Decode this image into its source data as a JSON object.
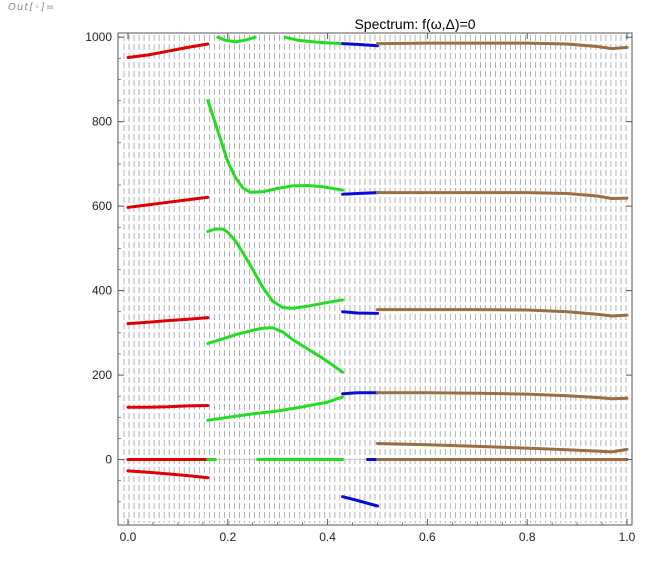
{
  "cell_label": "Out[◦]=",
  "chart_data": {
    "type": "line",
    "title": "Spectrum: f(ω,Δ)=0",
    "xlabel": "",
    "ylabel": "",
    "xlim": [
      -0.02,
      1.01
    ],
    "ylim": [
      -155,
      1010
    ],
    "xticks": [
      0.0,
      0.2,
      0.4,
      0.6,
      0.8,
      1.0
    ],
    "xtick_labels": [
      "0.0",
      "0.2",
      "0.4",
      "0.6",
      "0.8",
      "1.0"
    ],
    "yticks": [
      0,
      200,
      400,
      600,
      800,
      1000
    ],
    "ytick_labels": [
      "0",
      "200",
      "400",
      "600",
      "800",
      "1000"
    ],
    "vertical_dashed_grid": true,
    "colors": {
      "red": "#e00000",
      "green": "#22dd22",
      "blue": "#0a0ad8",
      "brown": "#9a6e42",
      "grid": "#a0a0a0",
      "axis": "#555555"
    },
    "segments": [
      {
        "color": "red",
        "points": [
          [
            0.0,
            952
          ],
          [
            0.04,
            958
          ],
          [
            0.08,
            967
          ],
          [
            0.12,
            976
          ],
          [
            0.16,
            984
          ]
        ]
      },
      {
        "color": "red",
        "points": [
          [
            0.0,
            597
          ],
          [
            0.04,
            603
          ],
          [
            0.08,
            609
          ],
          [
            0.12,
            615
          ],
          [
            0.16,
            621
          ]
        ]
      },
      {
        "color": "red",
        "points": [
          [
            0.0,
            322
          ],
          [
            0.04,
            325
          ],
          [
            0.08,
            329
          ],
          [
            0.12,
            332
          ],
          [
            0.16,
            336
          ]
        ]
      },
      {
        "color": "red",
        "points": [
          [
            0.0,
            124
          ],
          [
            0.04,
            124
          ],
          [
            0.08,
            125
          ],
          [
            0.12,
            127
          ],
          [
            0.16,
            128
          ]
        ]
      },
      {
        "color": "red",
        "points": [
          [
            0.0,
            0
          ],
          [
            0.16,
            0
          ]
        ]
      },
      {
        "color": "red",
        "points": [
          [
            0.0,
            -27
          ],
          [
            0.04,
            -30
          ],
          [
            0.08,
            -34
          ],
          [
            0.12,
            -38
          ],
          [
            0.16,
            -43
          ]
        ]
      },
      {
        "color": "green",
        "points": [
          [
            0.18,
            1000
          ],
          [
            0.195,
            993
          ],
          [
            0.215,
            989
          ],
          [
            0.235,
            993
          ],
          [
            0.255,
            1000
          ]
        ]
      },
      {
        "color": "green",
        "points": [
          [
            0.315,
            1000
          ],
          [
            0.34,
            993
          ],
          [
            0.38,
            988
          ],
          [
            0.43,
            985
          ]
        ]
      },
      {
        "color": "green",
        "points": [
          [
            0.16,
            850
          ],
          [
            0.17,
            815
          ],
          [
            0.185,
            760
          ],
          [
            0.2,
            705
          ],
          [
            0.215,
            668
          ],
          [
            0.23,
            643
          ],
          [
            0.245,
            633
          ],
          [
            0.27,
            634
          ],
          [
            0.3,
            642
          ],
          [
            0.33,
            648
          ],
          [
            0.36,
            649
          ],
          [
            0.39,
            646
          ],
          [
            0.43,
            638
          ]
        ]
      },
      {
        "color": "green",
        "points": [
          [
            0.16,
            540
          ],
          [
            0.175,
            546
          ],
          [
            0.19,
            546
          ],
          [
            0.2,
            538
          ],
          [
            0.215,
            518
          ],
          [
            0.23,
            490
          ],
          [
            0.25,
            450
          ],
          [
            0.27,
            408
          ],
          [
            0.29,
            375
          ],
          [
            0.31,
            360
          ],
          [
            0.33,
            358
          ],
          [
            0.36,
            363
          ],
          [
            0.39,
            370
          ],
          [
            0.43,
            378
          ]
        ]
      },
      {
        "color": "green",
        "points": [
          [
            0.16,
            275
          ],
          [
            0.19,
            286
          ],
          [
            0.22,
            297
          ],
          [
            0.25,
            306
          ],
          [
            0.27,
            311
          ],
          [
            0.29,
            312
          ],
          [
            0.31,
            302
          ],
          [
            0.33,
            284
          ],
          [
            0.36,
            262
          ],
          [
            0.39,
            240
          ],
          [
            0.43,
            207
          ]
        ]
      },
      {
        "color": "green",
        "points": [
          [
            0.16,
            93
          ],
          [
            0.2,
            100
          ],
          [
            0.25,
            108
          ],
          [
            0.3,
            115
          ],
          [
            0.35,
            125
          ],
          [
            0.4,
            136
          ],
          [
            0.43,
            148
          ]
        ]
      },
      {
        "color": "green",
        "points": [
          [
            0.16,
            0
          ],
          [
            0.175,
            0
          ]
        ]
      },
      {
        "color": "green",
        "points": [
          [
            0.26,
            0
          ],
          [
            0.43,
            0
          ]
        ]
      },
      {
        "color": "blue",
        "points": [
          [
            0.43,
            985
          ],
          [
            0.46,
            983
          ],
          [
            0.5,
            980
          ]
        ]
      },
      {
        "color": "blue",
        "points": [
          [
            0.43,
            628
          ],
          [
            0.46,
            630
          ],
          [
            0.5,
            632
          ]
        ]
      },
      {
        "color": "blue",
        "points": [
          [
            0.43,
            350
          ],
          [
            0.46,
            347
          ],
          [
            0.5,
            346
          ]
        ]
      },
      {
        "color": "blue",
        "points": [
          [
            0.43,
            156
          ],
          [
            0.46,
            158
          ],
          [
            0.5,
            158
          ]
        ]
      },
      {
        "color": "blue",
        "points": [
          [
            0.43,
            -88
          ],
          [
            0.46,
            -97
          ],
          [
            0.5,
            -110
          ]
        ]
      },
      {
        "color": "blue",
        "points": [
          [
            0.48,
            0
          ],
          [
            0.5,
            0
          ]
        ]
      },
      {
        "color": "brown",
        "points": [
          [
            0.5,
            985
          ],
          [
            0.6,
            986
          ],
          [
            0.7,
            986
          ],
          [
            0.8,
            986
          ],
          [
            0.88,
            984
          ],
          [
            0.94,
            978
          ],
          [
            0.97,
            973
          ],
          [
            1.0,
            976
          ]
        ]
      },
      {
        "color": "brown",
        "points": [
          [
            0.5,
            632
          ],
          [
            0.6,
            632
          ],
          [
            0.7,
            632
          ],
          [
            0.8,
            632
          ],
          [
            0.88,
            630
          ],
          [
            0.94,
            624
          ],
          [
            0.97,
            618
          ],
          [
            1.0,
            619
          ]
        ]
      },
      {
        "color": "brown",
        "points": [
          [
            0.5,
            355
          ],
          [
            0.6,
            355
          ],
          [
            0.7,
            355
          ],
          [
            0.8,
            354
          ],
          [
            0.88,
            350
          ],
          [
            0.94,
            344
          ],
          [
            0.97,
            340
          ],
          [
            1.0,
            342
          ]
        ]
      },
      {
        "color": "brown",
        "points": [
          [
            0.5,
            158
          ],
          [
            0.6,
            158
          ],
          [
            0.7,
            157
          ],
          [
            0.8,
            155
          ],
          [
            0.88,
            151
          ],
          [
            0.94,
            147
          ],
          [
            0.97,
            144
          ],
          [
            1.0,
            145
          ]
        ]
      },
      {
        "color": "brown",
        "points": [
          [
            0.5,
            38
          ],
          [
            0.6,
            35
          ],
          [
            0.7,
            31
          ],
          [
            0.8,
            27
          ],
          [
            0.88,
            23
          ],
          [
            0.94,
            20
          ],
          [
            0.97,
            18
          ],
          [
            1.0,
            24
          ]
        ]
      },
      {
        "color": "brown",
        "points": [
          [
            0.5,
            0
          ],
          [
            1.0,
            0
          ]
        ]
      }
    ]
  }
}
